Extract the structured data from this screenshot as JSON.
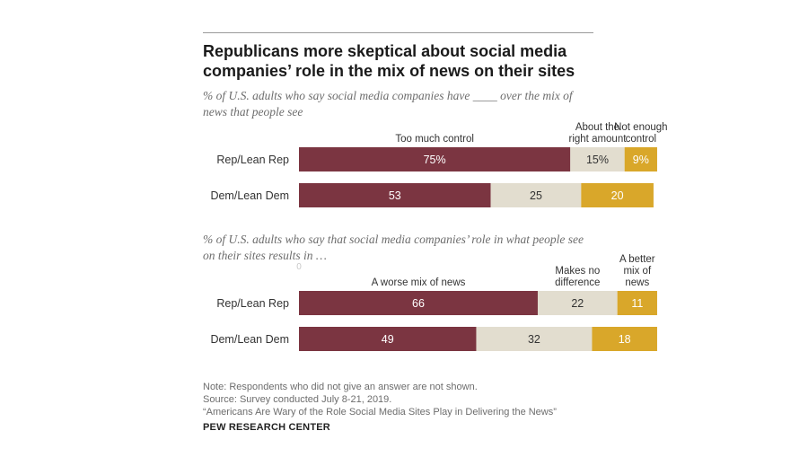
{
  "title": "Republicans more skeptical about social media companies’ role in the mix of news on their sites",
  "colors": {
    "maroon": "#7b3541",
    "beige": "#e2ddcf",
    "gold": "#d9a72a",
    "rule": "#9a9a9a"
  },
  "chart_data": [
    {
      "type": "bar",
      "orientation": "horizontal",
      "stacked": true,
      "subtitle": "% of U.S. adults who say social media companies have ____ over the mix of news that people see",
      "categories": [
        "Rep/Lean Rep",
        "Dem/Lean Dem"
      ],
      "series": [
        {
          "name": "Too much control",
          "values": [
            75,
            53
          ],
          "labels": [
            "75%",
            "53"
          ],
          "color": "#7b3541"
        },
        {
          "name": "About the right amount",
          "values": [
            15,
            25
          ],
          "labels": [
            "15%",
            "25"
          ],
          "color": "#e2ddcf"
        },
        {
          "name": "Not enough control",
          "values": [
            9,
            20
          ],
          "labels": [
            "9%",
            "20"
          ],
          "color": "#d9a72a"
        }
      ],
      "series_label_lines": [
        [
          "Too much control"
        ],
        [
          "About the",
          "right amount"
        ],
        [
          "Not enough",
          "control"
        ]
      ],
      "xlim": [
        0,
        100
      ]
    },
    {
      "type": "bar",
      "orientation": "horizontal",
      "stacked": true,
      "subtitle": "% of U.S. adults who say that social media companies’ role in what people see on their sites results in …",
      "axis_zero_label": "0",
      "categories": [
        "Rep/Lean Rep",
        "Dem/Lean Dem"
      ],
      "series": [
        {
          "name": "A worse mix of news",
          "values": [
            66,
            49
          ],
          "labels": [
            "66",
            "49"
          ],
          "color": "#7b3541"
        },
        {
          "name": "Makes no difference",
          "values": [
            22,
            32
          ],
          "labels": [
            "22",
            "32"
          ],
          "color": "#e2ddcf"
        },
        {
          "name": "A better mix of news",
          "values": [
            11,
            18
          ],
          "labels": [
            "11",
            "18"
          ],
          "color": "#d9a72a"
        }
      ],
      "series_label_lines": [
        [
          "A worse mix of news"
        ],
        [
          "Makes no",
          "difference"
        ],
        [
          "A better",
          "mix of",
          "news"
        ]
      ],
      "xlim": [
        0,
        100
      ]
    }
  ],
  "footer": {
    "note": "Note: Respondents who did not give an answer are not shown.",
    "source": "Source: Survey conducted July 8-21, 2019.",
    "report": "“Americans Are Wary of the Role Social Media Sites Play in Delivering the News”",
    "org": "PEW RESEARCH CENTER"
  }
}
